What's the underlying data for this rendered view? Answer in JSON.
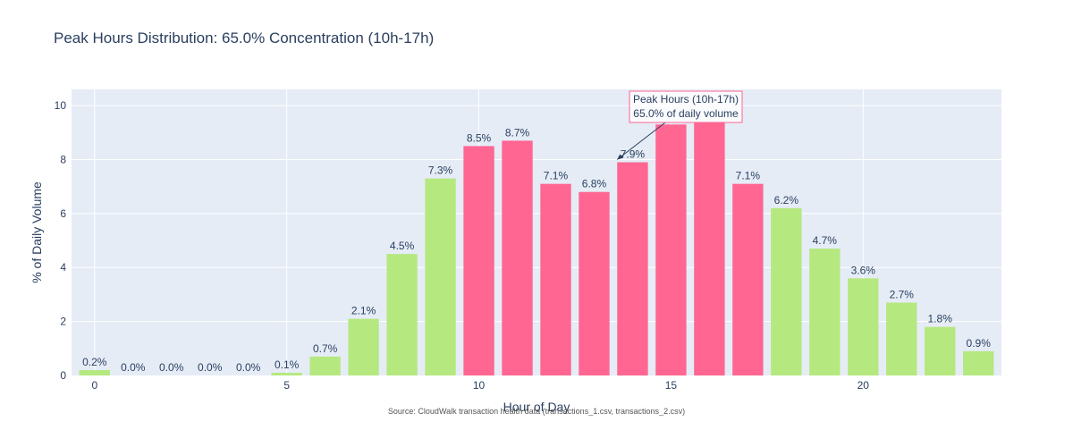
{
  "title": "Peak Hours Distribution: 65.0% Concentration (10h-17h)",
  "colors": {
    "peak": "#ff6692",
    "off_peak": "#b6e880",
    "plot_bg": "#e5ecf6",
    "grid": "#ffffff",
    "text": "#2a3f5f",
    "annotation_border": "#ff6692"
  },
  "chart_data": {
    "type": "bar",
    "title": "Peak Hours Distribution: 65.0% Concentration (10h-17h)",
    "xlabel": "Hour of Day",
    "ylabel": "% of Daily Volume",
    "xlim": [
      -0.6,
      23.6
    ],
    "ylim": [
      0,
      10.6
    ],
    "x_ticks": [
      0,
      5,
      10,
      15,
      20
    ],
    "y_ticks": [
      0,
      2,
      4,
      6,
      8,
      10
    ],
    "grid": true,
    "categories": [
      0,
      1,
      2,
      3,
      4,
      5,
      6,
      7,
      8,
      9,
      10,
      11,
      12,
      13,
      14,
      15,
      16,
      17,
      18,
      19,
      20,
      21,
      22,
      23
    ],
    "values": [
      0.2,
      0.0,
      0.0,
      0.0,
      0.0,
      0.1,
      0.7,
      2.1,
      4.5,
      7.3,
      8.5,
      8.7,
      7.1,
      6.8,
      7.9,
      9.3,
      9.4,
      7.1,
      6.2,
      4.7,
      3.6,
      2.7,
      1.8,
      0.9
    ],
    "labels": [
      "0.2%",
      "0.0%",
      "0.0%",
      "0.0%",
      "0.0%",
      "0.1%",
      "0.7%",
      "2.1%",
      "4.5%",
      "7.3%",
      "8.5%",
      "8.7%",
      "7.1%",
      "6.8%",
      "7.9%",
      "",
      "",
      "7.1%",
      "6.2%",
      "4.7%",
      "3.6%",
      "2.7%",
      "1.8%",
      "0.9%"
    ],
    "peak_hours": [
      10,
      17
    ],
    "annotation": {
      "lines": [
        "Peak Hours (10h-17h)",
        "65.0% of daily volume"
      ],
      "arrow_to": {
        "x": 13.6,
        "y": 8.0
      }
    },
    "source": "Source: CloudWalk transaction health data (transactions_1.csv, transactions_2.csv)"
  }
}
